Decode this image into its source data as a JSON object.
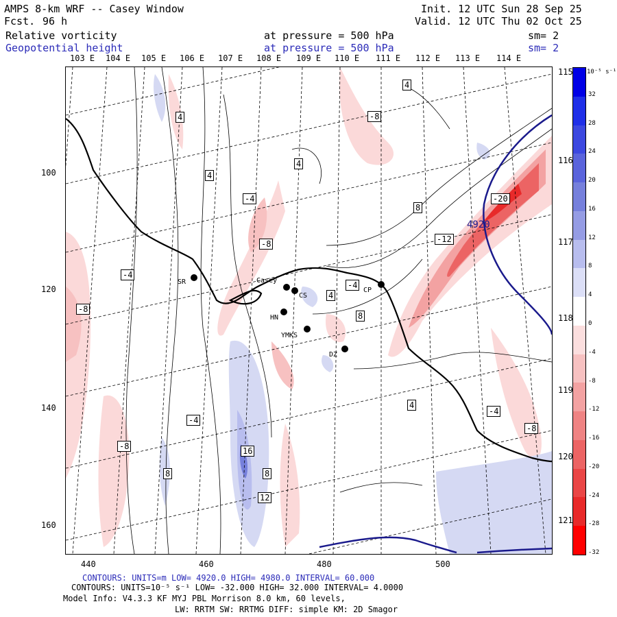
{
  "header": {
    "title": "AMPS 8-km WRF -- Casey Window",
    "fcst_label": "Fcst.",
    "fcst_value": "96 h",
    "init": "Init. 12 UTC Sun 28 Sep 25",
    "valid": "Valid. 12 UTC Thu 02 Oct 25",
    "field1": {
      "name": "Relative vorticity",
      "level": "at pressure =  500 hPa",
      "sm": "sm= 2"
    },
    "field2": {
      "name": "Geopotential height",
      "level": "at pressure =  500 hPa",
      "sm": "sm= 2"
    }
  },
  "map": {
    "top_longitudes": [
      "103 E",
      "104 E",
      "105 E",
      "106 E",
      "107 E",
      "108 E",
      "109 E",
      "110 E",
      "111 E",
      "112 E",
      "113 E",
      "114 E"
    ],
    "right_longitudes": [
      "115 E",
      "116 E",
      "117 E",
      "118 E",
      "119 E",
      "120 E",
      "121 E"
    ],
    "x_ticks": [
      "440",
      "460",
      "480",
      "500"
    ],
    "y_ticks": [
      "100",
      "120",
      "140",
      "160"
    ],
    "stations": [
      "SR",
      "Casey",
      "CS",
      "HN",
      "YMKS",
      "DZ",
      "CP"
    ],
    "contour_labels": {
      "vorticity": [
        "-8",
        "-4",
        "4",
        "8",
        "-8",
        "-4",
        "4",
        "-8",
        "-4",
        "4",
        "8",
        "-12",
        "-20",
        "16",
        "12",
        "8",
        "-8",
        "4",
        "-4",
        "4",
        "8",
        "4",
        "-4",
        "-8"
      ],
      "height": "4920"
    },
    "colors": {
      "negative_strong": "#e82a2a",
      "negative_light": "#fbd9d9",
      "positive_strong": "#2a2ad8",
      "positive_light": "#d5d9f3",
      "height_contour": "#1a1a8c",
      "coast": "#000000"
    }
  },
  "colorbar": {
    "units": "10⁻⁵ s⁻¹",
    "labels": [
      "32",
      "28",
      "24",
      "20",
      "16",
      "12",
      "8",
      "4",
      "0",
      "-4",
      "-8",
      "-12",
      "-16",
      "-20",
      "-24",
      "-28",
      "-32"
    ],
    "colors": [
      "#0000e6",
      "#1f2fe8",
      "#3c48e0",
      "#5a64dc",
      "#7680dc",
      "#959ce4",
      "#b8bdee",
      "#dcdff7",
      "#ffffff",
      "#fbdede",
      "#f7c1c1",
      "#f3a2a2",
      "#ef8383",
      "#ec6464",
      "#ea4646",
      "#e82a2a",
      "#ff0000"
    ]
  },
  "footer": {
    "line1": "CONTOURS:  UNITS=m  LOW=  4920.0          HIGH=  4980.0          INTERVAL=   60.000",
    "line2": "CONTOURS:  UNITS=10⁻⁵ s⁻¹  LOW= -32.000          HIGH=  32.000          INTERVAL=   4.0000",
    "line3": "Model Info: V4.3.3    KF       MYJ PBL  Morrison                8.0 km,  60 levels,",
    "line4": "LW: RRTM SW: RRTMG   DIFF: simple KM: 2D Smagor"
  }
}
